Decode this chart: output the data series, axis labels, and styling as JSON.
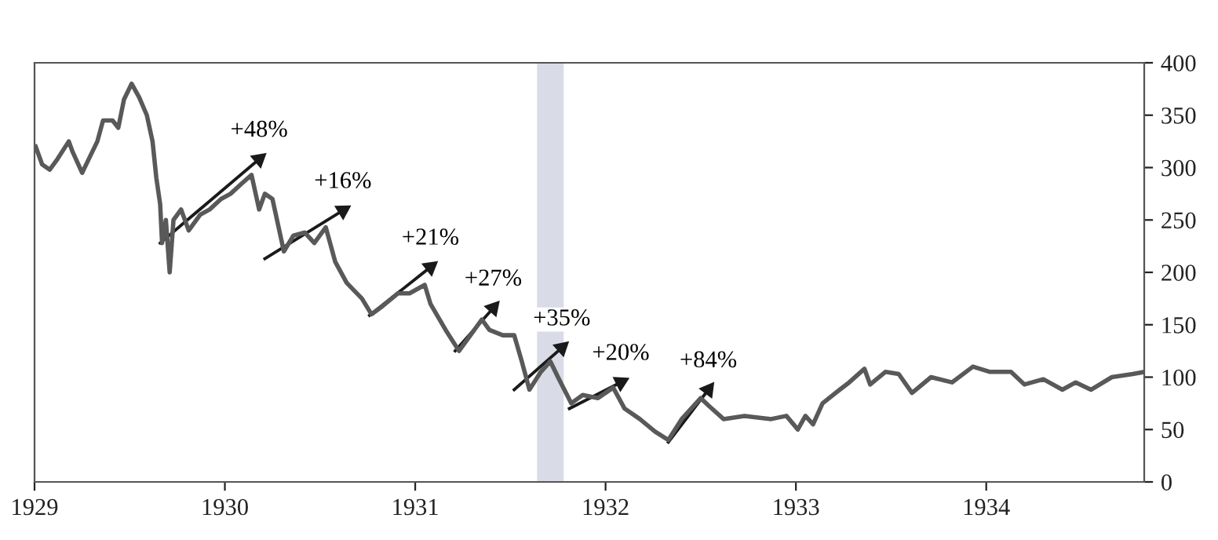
{
  "chart_data": {
    "type": "line",
    "series": [
      {
        "color": "#595959",
        "x": [
          1929.006,
          1929.04,
          1929.08,
          1929.12,
          1929.18,
          1929.2,
          1929.25,
          1929.29,
          1929.33,
          1929.36,
          1929.41,
          1929.44,
          1929.47,
          1929.51,
          1929.55,
          1929.59,
          1929.62,
          1929.64,
          1929.66,
          1929.67,
          1929.69,
          1929.71,
          1929.73,
          1929.77,
          1929.81,
          1929.87,
          1929.92,
          1929.98,
          1930.03,
          1930.09,
          1930.14,
          1930.18,
          1930.21,
          1930.25,
          1930.31,
          1930.36,
          1930.42,
          1930.47,
          1930.53,
          1930.58,
          1930.64,
          1930.72,
          1930.77,
          1930.83,
          1930.91,
          1930.97,
          1931.05,
          1931.08,
          1931.16,
          1931.23,
          1931.27,
          1931.35,
          1931.39,
          1931.46,
          1931.52,
          1931.56,
          1931.6,
          1931.66,
          1931.71,
          1931.75,
          1931.82,
          1931.88,
          1931.96,
          1932.04,
          1932.1,
          1932.18,
          1932.26,
          1932.33,
          1932.4,
          1932.5,
          1932.54,
          1932.62,
          1932.73,
          1932.87,
          1932.95,
          1933.01,
          1933.05,
          1933.09,
          1933.14,
          1933.23,
          1933.28,
          1933.36,
          1933.39,
          1933.47,
          1933.54,
          1933.61,
          1933.71,
          1933.82,
          1933.93,
          1934.02,
          1934.13,
          1934.2,
          1934.3,
          1934.4,
          1934.47,
          1934.55,
          1934.66,
          1934.77,
          1934.83
        ],
        "values": [
          320,
          303,
          298,
          308,
          325,
          315,
          295,
          310,
          325,
          345,
          345,
          338,
          365,
          380,
          367,
          350,
          325,
          290,
          265,
          228,
          250,
          200,
          250,
          260,
          240,
          255,
          260,
          270,
          275,
          285,
          293,
          260,
          275,
          270,
          220,
          235,
          238,
          228,
          243,
          210,
          190,
          175,
          160,
          168,
          180,
          180,
          188,
          170,
          145,
          125,
          135,
          155,
          145,
          140,
          140,
          115,
          88,
          105,
          115,
          100,
          75,
          83,
          80,
          90,
          70,
          60,
          48,
          40,
          60,
          80,
          73,
          60,
          63,
          60,
          63,
          50,
          63,
          55,
          75,
          88,
          95,
          108,
          93,
          105,
          103,
          85,
          100,
          95,
          110,
          105,
          105,
          93,
          98,
          88,
          95,
          88,
          100,
          103,
          105
        ]
      },
      {
        "type": "line",
        "color": "#1a1a1a",
        "x": [
          1929.66,
          1930.18
        ],
        "values": [
          228,
          308
        ]
      },
      {
        "type": "line",
        "color": "#1a1a1a",
        "x": [
          1930.21,
          1930.62
        ],
        "values": [
          213,
          259
        ]
      },
      {
        "type": "line",
        "color": "#1a1a1a",
        "x": [
          1930.76,
          1931.08
        ],
        "values": [
          159,
          205
        ]
      },
      {
        "type": "line",
        "color": "#1a1a1a",
        "x": [
          1931.21,
          1931.41
        ],
        "values": [
          125,
          166
        ]
      },
      {
        "type": "line",
        "color": "#1a1a1a",
        "x": [
          1931.52,
          1931.77
        ],
        "values": [
          88,
          128
        ]
      },
      {
        "type": "line",
        "color": "#1a1a1a",
        "x": [
          1931.81,
          1932.08
        ],
        "values": [
          70,
          95
        ]
      },
      {
        "type": "line",
        "color": "#1a1a1a",
        "x": [
          1932.33,
          1932.54
        ],
        "values": [
          38,
          88
        ]
      }
    ],
    "bands": [
      {
        "axis": "x",
        "from": 1931.64,
        "to": 1931.78,
        "color": "#d9dbe6"
      }
    ],
    "annotations": [
      {
        "text": "+48%",
        "x": 1930.18,
        "y": 308
      },
      {
        "text": "+16%",
        "x": 1930.62,
        "y": 259
      },
      {
        "text": "+21%",
        "x": 1931.08,
        "y": 205
      },
      {
        "text": "+27%",
        "x": 1931.41,
        "y": 166
      },
      {
        "text": "+35%",
        "x": 1931.77,
        "y": 128
      },
      {
        "text": "+20%",
        "x": 1932.08,
        "y": 95
      },
      {
        "text": "+84%",
        "x": 1932.54,
        "y": 88
      }
    ],
    "xlim": [
      1929,
      1934.83
    ],
    "xticks": [
      1929,
      1930,
      1931,
      1932,
      1933,
      1934
    ],
    "ylim": [
      0,
      400
    ],
    "yticks": [
      0,
      50,
      100,
      150,
      200,
      250,
      300,
      350,
      400
    ],
    "grid": false,
    "legend": false
  }
}
